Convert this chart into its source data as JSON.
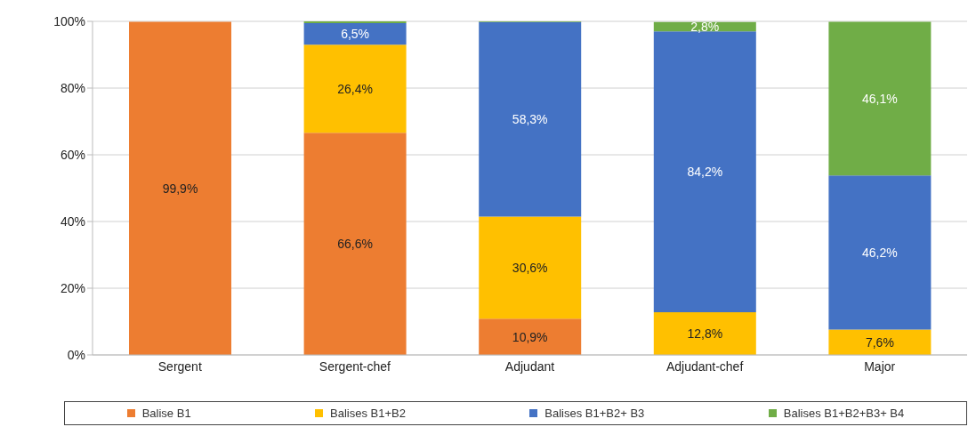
{
  "chart_data": {
    "type": "bar",
    "stacked": true,
    "categories": [
      "Sergent",
      "Sergent-chef",
      "Adjudant",
      "Adjudant-chef",
      "Major"
    ],
    "series": [
      {
        "name": "Balise B1",
        "color": "#ed7d31",
        "values": [
          99.9,
          66.6,
          10.9,
          0,
          0
        ],
        "value_labels": [
          "99,9%",
          "66,6%",
          "10,9%",
          null,
          null
        ]
      },
      {
        "name": "Balises B1+B2",
        "color": "#ffc000",
        "values": [
          0,
          26.4,
          30.6,
          12.8,
          7.6
        ],
        "value_labels": [
          null,
          "26,4%",
          "30,6%",
          "12,8%",
          "7,6%"
        ]
      },
      {
        "name": "Balises B1+B2+ B3",
        "color": "#4472c4",
        "values": [
          0,
          6.5,
          58.3,
          84.2,
          46.2
        ],
        "value_labels": [
          null,
          "6,5%",
          "58,3%",
          "84,2%",
          "46,2%"
        ]
      },
      {
        "name": "Balises B1+B2+B3+ B4",
        "color": "#70ad47",
        "values": [
          0,
          0.5,
          0.2,
          2.8,
          46.1
        ],
        "value_labels": [
          null,
          null,
          null,
          "2,8%",
          "46,1%"
        ]
      }
    ],
    "ylim": [
      0,
      100
    ],
    "yticks": [
      {
        "value": 0,
        "label": "0%"
      },
      {
        "value": 20,
        "label": "20%"
      },
      {
        "value": 40,
        "label": "40%"
      },
      {
        "value": 60,
        "label": "60%"
      },
      {
        "value": 80,
        "label": "80%"
      },
      {
        "value": 100,
        "label": "100%"
      }
    ],
    "grid": "y",
    "legend": "bottom"
  }
}
